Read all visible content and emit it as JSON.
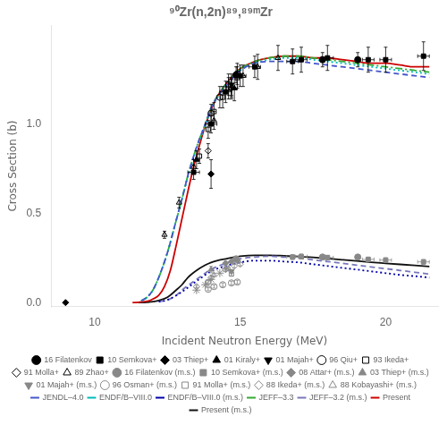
{
  "chart_data": {
    "type": "scatter",
    "title": "⁹⁰Zr(n,2n)⁸⁹,⁸⁹ᵐZr",
    "xlabel": "Incident Neutron Energy (MeV)",
    "ylabel": "Cross Section (b)",
    "xlim": [
      8.5,
      21.8
    ],
    "ylim": [
      -0.02,
      1.55
    ],
    "xticks": [
      10,
      15,
      20
    ],
    "yticks": [
      {
        "value": 0,
        "label": "0.0"
      },
      {
        "value": 0.5,
        "label": "0.5"
      },
      {
        "value": 1,
        "label": "1.0"
      }
    ],
    "grid": false,
    "legend": "bottom",
    "series": [
      {
        "name": "16 Filatenkov",
        "type": "scatter",
        "marker": "circle",
        "color": "#000000",
        "x": [
          14.86,
          17.83,
          19.04
        ],
        "y": [
          1.275,
          1.36,
          1.36
        ],
        "xerr": [
          null,
          null,
          null
        ],
        "yerr": [
          0.045,
          0.04,
          0.04
        ]
      },
      {
        "name": "10 Semkova+",
        "type": "scatter",
        "marker": "square",
        "color": "#000000",
        "x": [
          13.4,
          14.0,
          14.5,
          15.0,
          15.5,
          16.8,
          17.1,
          18.0,
          19.4,
          20.0,
          21.3
        ],
        "y": [
          0.73,
          1.0,
          1.18,
          1.27,
          1.32,
          1.35,
          1.36,
          1.37,
          1.36,
          1.36,
          1.38
        ],
        "xerr": [
          0.2,
          0.2,
          0.2,
          0.2,
          0.2,
          0.2,
          0.2,
          0.2,
          0.2,
          0.2,
          0.2
        ],
        "yerr": [
          0.04,
          0.05,
          0.06,
          0.06,
          0.06,
          0.07,
          0.07,
          0.07,
          0.07,
          0.07,
          0.08
        ]
      },
      {
        "name": "03 Thiep+",
        "type": "scatter",
        "marker": "diamond",
        "color": "#000000",
        "x": [
          9.0,
          14.0
        ],
        "y": [
          0.0,
          0.72
        ],
        "xerr": [
          null,
          null
        ],
        "yerr": [
          0.001,
          0.08
        ]
      },
      {
        "name": "01 Kiraly+",
        "type": "scatter",
        "marker": "triangle_up",
        "color": "#000000",
        "x": [
          13.5,
          14.8
        ],
        "y": [
          0.8,
          1.2
        ],
        "xerr": [
          0.1,
          0.1
        ],
        "yerr": [
          0.05,
          0.07
        ]
      },
      {
        "name": "01 Majah+",
        "type": "scatter",
        "marker": "triangle_down",
        "color": "#000000",
        "x": [
          14.7
        ],
        "y": [
          1.22
        ],
        "xerr": [
          null
        ],
        "yerr": [
          0.06
        ]
      },
      {
        "name": "96 Qiu+",
        "type": "scatter",
        "marker": "open_circle",
        "color": "#000000",
        "x": [
          14.0,
          14.3,
          14.6,
          14.9
        ],
        "y": [
          1.06,
          1.15,
          1.22,
          1.28
        ],
        "xerr": [
          null,
          null,
          null,
          null
        ],
        "yerr": [
          0.05,
          0.06,
          0.06,
          0.06
        ]
      },
      {
        "name": "93 Ikeda+",
        "type": "scatter",
        "marker": "open_square",
        "color": "#000000",
        "x": [
          13.6,
          13.9,
          14.1,
          14.4,
          14.6,
          14.9
        ],
        "y": [
          0.82,
          0.97,
          1.07,
          1.15,
          1.2,
          1.26
        ],
        "xerr": [
          null,
          null,
          null,
          null,
          null,
          null
        ],
        "yerr": [
          0.04,
          0.05,
          0.05,
          0.06,
          0.06,
          0.06
        ]
      },
      {
        "name": "91 Molla+",
        "type": "scatter",
        "marker": "open_diamond",
        "color": "#000000",
        "x": [
          13.9,
          14.7
        ],
        "y": [
          0.85,
          1.2
        ],
        "xerr": [
          null,
          null
        ],
        "yerr": [
          0.04,
          0.05
        ]
      },
      {
        "name": "89 Zhao+",
        "type": "scatter",
        "marker": "open_triangle_up",
        "color": "#000000",
        "x": [
          12.4,
          12.9,
          13.4,
          14.1,
          14.7,
          15.1,
          15.6,
          16.3
        ],
        "y": [
          0.38,
          0.56,
          0.76,
          1.02,
          1.2,
          1.27,
          1.32,
          1.37
        ],
        "xerr": [
          null,
          null,
          null,
          null,
          null,
          null,
          null,
          null
        ],
        "yerr": [
          0.02,
          0.03,
          0.04,
          0.05,
          0.06,
          0.06,
          0.07,
          0.07
        ]
      },
      {
        "name": "16 Filatenkov (m.s.)",
        "type": "scatter",
        "marker": "circle",
        "color": "#888888",
        "x": [
          14.86,
          17.83,
          19.04
        ],
        "y": [
          0.245,
          0.255,
          0.255
        ],
        "xerr": [
          null,
          null,
          null
        ],
        "yerr": [
          0.012,
          0.012,
          0.012
        ]
      },
      {
        "name": "10 Semkova+ (m.s.)",
        "type": "scatter",
        "marker": "square",
        "color": "#888888",
        "x": [
          16.8,
          17.1,
          18.0,
          19.4,
          20.0,
          21.3
        ],
        "y": [
          0.255,
          0.258,
          0.252,
          0.242,
          0.238,
          0.228
        ],
        "xerr": [
          0.2,
          0.2,
          0.2,
          0.2,
          0.2,
          0.2
        ],
        "yerr": [
          0.014,
          0.014,
          0.013,
          0.013,
          0.013,
          0.013
        ]
      },
      {
        "name": "08 Attar+ (m.s.)",
        "type": "scatter",
        "marker": "diamond",
        "color": "#888888",
        "x": [
          14.5,
          14.7,
          14.9
        ],
        "y": [
          0.22,
          0.23,
          0.235
        ],
        "xerr": [
          null,
          null,
          null
        ],
        "yerr": [
          0.011,
          0.011,
          0.012
        ]
      },
      {
        "name": "03 Thiep+ (m.s.)",
        "type": "scatter",
        "marker": "triangle_up",
        "color": "#888888",
        "x": [
          14.0
        ],
        "y": [
          0.185
        ],
        "xerr": [
          null
        ],
        "yerr": [
          0.018
        ]
      },
      {
        "name": "01 Majah+ (m.s.)",
        "type": "scatter",
        "marker": "triangle_down",
        "color": "#888888",
        "x": [
          14.7
        ],
        "y": [
          0.175
        ],
        "xerr": [
          null
        ],
        "yerr": [
          0.01
        ]
      },
      {
        "name": "96 Osman+ (m.s.)",
        "type": "scatter",
        "marker": "open_circle",
        "color": "#888888",
        "x": [
          13.9,
          14.1,
          14.4,
          14.7,
          14.9
        ],
        "y": [
          0.075,
          0.09,
          0.1,
          0.11,
          0.115
        ],
        "xerr": [
          null,
          null,
          null,
          null,
          null
        ],
        "yerr": [
          0.008,
          0.009,
          0.01,
          0.01,
          0.01
        ]
      },
      {
        "name": "91 Molla+ (m.s.)",
        "type": "scatter",
        "marker": "open_square",
        "color": "#888888",
        "x": [
          13.9,
          14.7
        ],
        "y": [
          0.115,
          0.16
        ],
        "xerr": [
          null,
          null
        ],
        "yerr": [
          0.009,
          0.01
        ]
      },
      {
        "name": "88 Ikeda+ (m.s.)",
        "type": "scatter",
        "marker": "open_diamond",
        "color": "#888888",
        "x": [
          13.5,
          14.0,
          14.5,
          14.8,
          15.0
        ],
        "y": [
          0.09,
          0.14,
          0.185,
          0.205,
          0.215
        ],
        "xerr": [
          null,
          null,
          null,
          null,
          null
        ],
        "yerr": [
          0.008,
          0.009,
          0.01,
          0.01,
          0.01
        ]
      },
      {
        "name": "88 Kobayashi+\n(m.s.)",
        "type": "scatter",
        "marker": "open_triangle_up",
        "color": "#888888",
        "x": [
          14.1,
          14.6
        ],
        "y": [
          0.155,
          0.19
        ],
        "xerr": [
          null,
          null
        ],
        "yerr": [
          0.009,
          0.01
        ]
      },
      {
        "type": "scatter",
        "marker": "star",
        "color": "#888888",
        "x": [
          13.5,
          13.8,
          14.0,
          14.3,
          14.5
        ],
        "y": [
          0.07,
          0.1,
          0.13,
          0.165,
          0.19
        ]
      },
      {
        "name": "JENDL–4.0",
        "type": "line",
        "line_style": "dashed",
        "color": "#4455cc",
        "x": [
          11.6,
          11.8,
          12.0,
          12.2,
          12.5,
          12.8,
          13.0,
          13.2,
          13.5,
          13.8,
          14.0,
          14.3,
          14.5,
          14.8,
          15.0,
          15.5,
          16.0,
          16.5,
          17.0,
          17.5,
          18.0,
          18.5,
          19.0,
          19.5,
          20.0,
          20.5,
          21.0,
          21.5
        ],
        "y": [
          0.01,
          0.03,
          0.07,
          0.14,
          0.28,
          0.46,
          0.58,
          0.71,
          0.87,
          1.0,
          1.09,
          1.17,
          1.21,
          1.27,
          1.3,
          1.34,
          1.35,
          1.35,
          1.35,
          1.34,
          1.33,
          1.32,
          1.31,
          1.3,
          1.29,
          1.28,
          1.27,
          1.26
        ]
      },
      {
        "name": "ENDF/B–VIII.0",
        "type": "line",
        "line_style": "dotted",
        "color": "#00bbbb",
        "x": [
          11.6,
          11.8,
          12.0,
          12.2,
          12.5,
          12.8,
          13.0,
          13.2,
          13.5,
          13.8,
          14.0,
          14.3,
          14.5,
          14.8,
          15.0,
          15.5,
          16.0,
          16.5,
          17.0,
          17.5,
          18.0,
          18.5,
          19.0,
          19.5,
          20.0,
          20.5,
          21.0,
          21.5
        ],
        "y": [
          0.01,
          0.03,
          0.07,
          0.14,
          0.28,
          0.46,
          0.58,
          0.7,
          0.86,
          0.99,
          1.08,
          1.17,
          1.21,
          1.27,
          1.3,
          1.34,
          1.36,
          1.37,
          1.37,
          1.36,
          1.35,
          1.34,
          1.33,
          1.32,
          1.31,
          1.3,
          1.29,
          1.28
        ]
      },
      {
        "name": "ENDF/B–VIII.0 (m.s.)",
        "type": "line",
        "line_style": "dotted",
        "color": "#0000aa",
        "x": [
          12.2,
          12.5,
          12.8,
          13.0,
          13.5,
          14.0,
          14.5,
          15.0,
          15.5,
          16.0,
          16.5,
          17.0,
          17.5,
          18.0,
          18.5,
          19.0,
          19.5,
          20.0,
          20.5,
          21.0,
          21.5
        ],
        "y": [
          0.005,
          0.015,
          0.04,
          0.06,
          0.12,
          0.175,
          0.205,
          0.225,
          0.235,
          0.235,
          0.23,
          0.225,
          0.215,
          0.205,
          0.195,
          0.185,
          0.175,
          0.165,
          0.155,
          0.148,
          0.14
        ]
      },
      {
        "name": "JEFF–3.3",
        "type": "line",
        "line_style": "dashdot",
        "color": "#33aa33",
        "x": [
          11.6,
          11.8,
          12.0,
          12.2,
          12.5,
          12.8,
          13.0,
          13.2,
          13.5,
          13.8,
          14.0,
          14.3,
          14.5,
          14.8,
          15.0,
          15.5,
          16.0,
          16.5,
          17.0,
          17.5,
          18.0,
          18.5,
          19.0,
          19.5,
          20.0,
          20.5,
          21.0,
          21.5
        ],
        "y": [
          0.01,
          0.03,
          0.07,
          0.14,
          0.28,
          0.46,
          0.58,
          0.71,
          0.87,
          1.0,
          1.09,
          1.18,
          1.22,
          1.28,
          1.31,
          1.35,
          1.37,
          1.38,
          1.38,
          1.37,
          1.36,
          1.35,
          1.34,
          1.33,
          1.32,
          1.31,
          1.3,
          1.29
        ]
      },
      {
        "name": "JEFF–3.2 (m.s.)",
        "type": "line",
        "line_style": "dashed",
        "color": "#7777bb",
        "x": [
          12.2,
          12.5,
          12.8,
          13.0,
          13.5,
          14.0,
          14.5,
          15.0,
          15.5,
          16.0,
          16.5,
          17.0,
          17.5,
          18.0,
          18.5,
          19.0,
          19.5,
          20.0,
          20.5,
          21.0,
          21.5
        ],
        "y": [
          0.005,
          0.015,
          0.04,
          0.07,
          0.13,
          0.185,
          0.22,
          0.245,
          0.255,
          0.26,
          0.255,
          0.25,
          0.24,
          0.23,
          0.22,
          0.21,
          0.2,
          0.19,
          0.18,
          0.17,
          0.16
        ]
      },
      {
        "name": "Present",
        "type": "line",
        "line_style": "solid",
        "color": "#cc0000",
        "x": [
          11.3,
          11.5,
          11.7,
          11.9,
          12.0,
          12.2,
          12.4,
          12.6,
          12.8,
          13.0,
          13.2,
          13.4,
          13.6,
          13.8,
          14.0,
          14.2,
          14.5,
          14.8,
          15.0,
          15.5,
          16.0,
          16.5,
          17.0,
          17.5,
          18.0,
          18.5,
          19.0,
          19.5,
          20.0,
          20.5,
          21.0,
          21.5
        ],
        "y": [
          0.0,
          0.002,
          0.005,
          0.012,
          0.02,
          0.04,
          0.09,
          0.18,
          0.32,
          0.47,
          0.62,
          0.76,
          0.88,
          0.99,
          1.08,
          1.15,
          1.22,
          1.28,
          1.31,
          1.35,
          1.37,
          1.38,
          1.38,
          1.37,
          1.37,
          1.36,
          1.35,
          1.34,
          1.34,
          1.33,
          1.32,
          1.32
        ]
      },
      {
        "name": "Present (m.s.)",
        "type": "line",
        "line_style": "solid",
        "color": "#111111",
        "x": [
          11.5,
          11.8,
          12.0,
          12.2,
          12.5,
          12.8,
          13.0,
          13.2,
          13.5,
          13.8,
          14.0,
          14.2,
          14.5,
          14.8,
          15.0,
          15.5,
          16.0,
          16.5,
          17.0,
          17.5,
          18.0,
          18.5,
          19.0,
          19.5,
          20.0,
          20.5,
          21.0,
          21.5
        ],
        "y": [
          0.0,
          0.002,
          0.005,
          0.012,
          0.03,
          0.07,
          0.1,
          0.14,
          0.18,
          0.21,
          0.225,
          0.235,
          0.245,
          0.255,
          0.26,
          0.265,
          0.265,
          0.262,
          0.258,
          0.253,
          0.247,
          0.24,
          0.233,
          0.226,
          0.22,
          0.214,
          0.208,
          0.202
        ]
      }
    ]
  }
}
